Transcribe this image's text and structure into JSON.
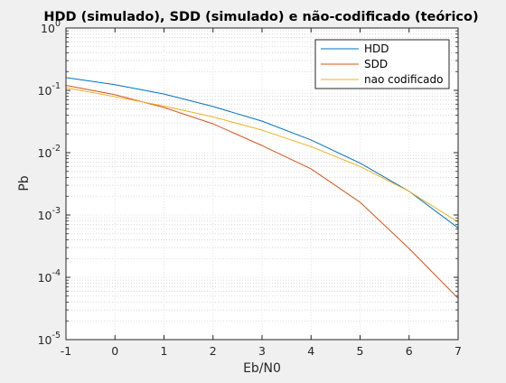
{
  "chart_data": {
    "type": "line",
    "title": "HDD (simulado), SDD (simulado) e não-codificado (teórico)",
    "xlabel": "Eb/N0",
    "ylabel": "Pb",
    "xlim": [
      -1,
      7
    ],
    "ylim": [
      1e-05,
      1
    ],
    "yscale": "log",
    "grid": true,
    "minor_grid": true,
    "legend_position": "top-right",
    "x_ticks": [
      "-1",
      "0",
      "1",
      "2",
      "3",
      "4",
      "5",
      "6",
      "7"
    ],
    "y_ticks": [
      {
        "base": "10",
        "exp": "-5",
        "value": 1e-05
      },
      {
        "base": "10",
        "exp": "-4",
        "value": 0.0001
      },
      {
        "base": "10",
        "exp": "-3",
        "value": 0.001
      },
      {
        "base": "10",
        "exp": "-2",
        "value": 0.01
      },
      {
        "base": "10",
        "exp": "-1",
        "value": 0.1
      },
      {
        "base": "10",
        "exp": "0",
        "value": 1
      }
    ],
    "x": [
      -1,
      0,
      1,
      2,
      3,
      4,
      5,
      6,
      7
    ],
    "series": [
      {
        "name": "HDD",
        "color": "#0072bd",
        "values": [
          0.16,
          0.123,
          0.087,
          0.055,
          0.032,
          0.016,
          0.0068,
          0.0024,
          0.00062
        ]
      },
      {
        "name": "SDD",
        "color": "#d95319",
        "values": [
          0.12,
          0.085,
          0.053,
          0.029,
          0.013,
          0.0055,
          0.0016,
          0.00029,
          4.6e-05
        ]
      },
      {
        "name": "nao codificado",
        "color": "#edb120",
        "values": [
          0.11,
          0.079,
          0.056,
          0.0375,
          0.023,
          0.0125,
          0.006,
          0.0024,
          0.00077
        ]
      }
    ]
  }
}
